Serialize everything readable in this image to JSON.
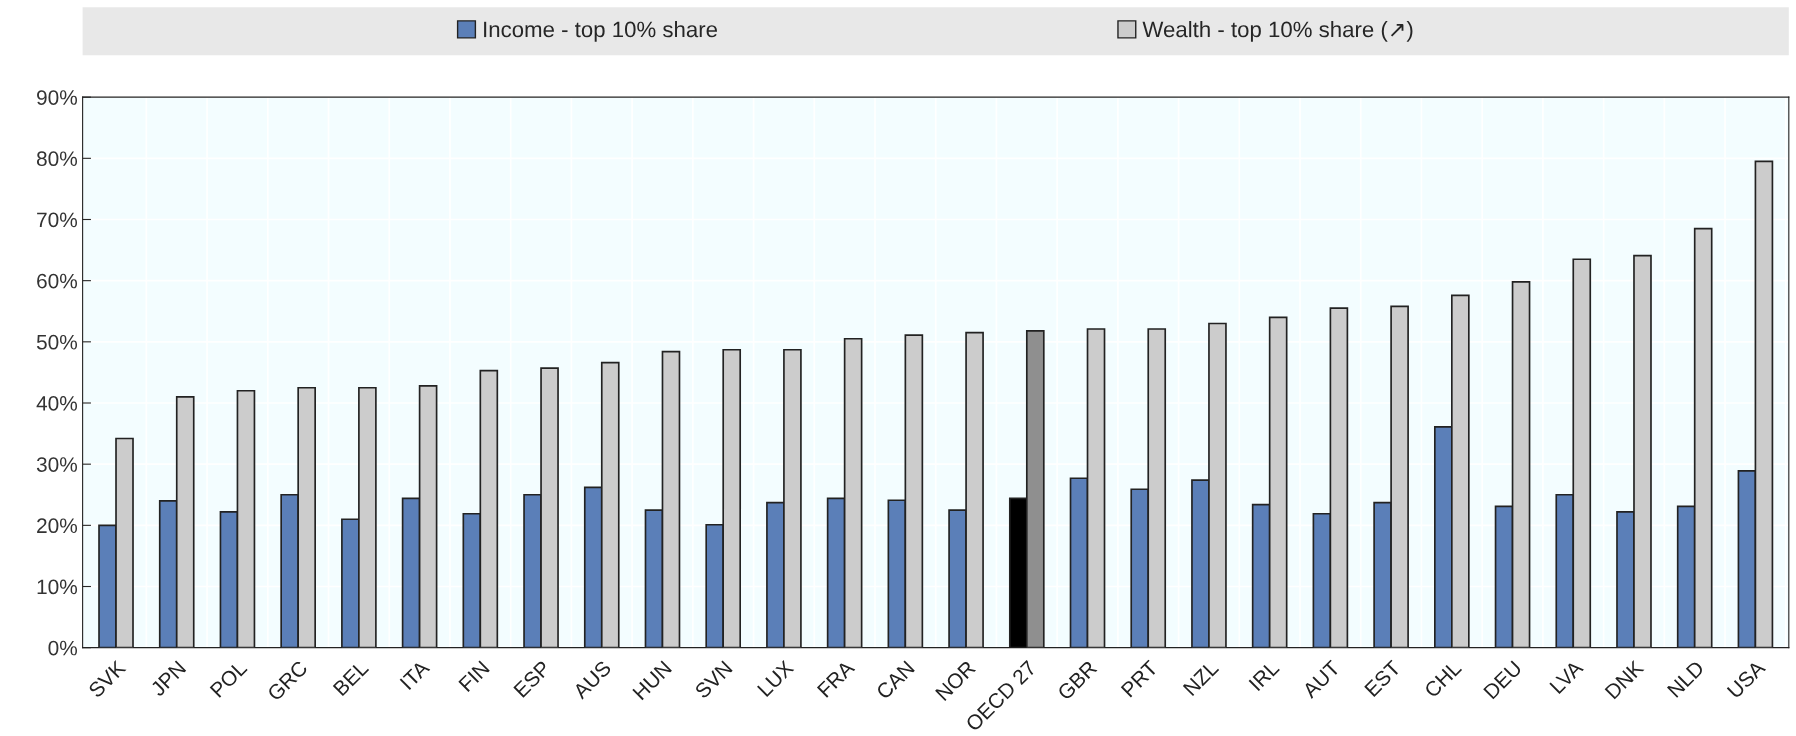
{
  "chart_data": {
    "type": "bar",
    "categories": [
      "SVK",
      "JPN",
      "POL",
      "GRC",
      "BEL",
      "ITA",
      "FIN",
      "ESP",
      "AUS",
      "HUN",
      "SVN",
      "LUX",
      "FRA",
      "CAN",
      "NOR",
      "OECD 27",
      "GBR",
      "PRT",
      "NZL",
      "IRL",
      "AUT",
      "EST",
      "CHL",
      "DEU",
      "LVA",
      "DNK",
      "NLD",
      "USA"
    ],
    "series": [
      {
        "name": "Income - top 10% share",
        "color": "#5b7fb8",
        "colors": [
          "#5b7fb8",
          "#5b7fb8",
          "#5b7fb8",
          "#5b7fb8",
          "#5b7fb8",
          "#5b7fb8",
          "#5b7fb8",
          "#5b7fb8",
          "#5b7fb8",
          "#5b7fb8",
          "#5b7fb8",
          "#5b7fb8",
          "#5b7fb8",
          "#5b7fb8",
          "#5b7fb8",
          "#000000",
          "#5b7fb8",
          "#5b7fb8",
          "#5b7fb8",
          "#5b7fb8",
          "#5b7fb8",
          "#5b7fb8",
          "#5b7fb8",
          "#5b7fb8",
          "#5b7fb8",
          "#5b7fb8",
          "#5b7fb8",
          "#5b7fb8"
        ],
        "values": [
          20,
          24,
          22.2,
          25,
          21,
          24.4,
          21.9,
          25,
          26.2,
          22.5,
          20.1,
          23.7,
          24.4,
          24.1,
          22.5,
          24.4,
          27.7,
          25.9,
          27.4,
          23.4,
          21.9,
          23.7,
          36.1,
          23.1,
          25,
          22.2,
          23.1,
          28.9
        ]
      },
      {
        "name": "Wealth - top 10% share (↗)",
        "color": "#cccccc",
        "colors": [
          "#cccccc",
          "#cccccc",
          "#cccccc",
          "#cccccc",
          "#cccccc",
          "#cccccc",
          "#cccccc",
          "#cccccc",
          "#cccccc",
          "#cccccc",
          "#cccccc",
          "#cccccc",
          "#cccccc",
          "#cccccc",
          "#cccccc",
          "#8f8f8f",
          "#cccccc",
          "#cccccc",
          "#cccccc",
          "#cccccc",
          "#cccccc",
          "#cccccc",
          "#cccccc",
          "#cccccc",
          "#cccccc",
          "#cccccc",
          "#cccccc",
          "#cccccc"
        ],
        "values": [
          34.2,
          41,
          42,
          42.5,
          42.5,
          42.8,
          45.3,
          45.7,
          46.6,
          48.4,
          48.7,
          48.7,
          50.5,
          51.1,
          51.5,
          51.8,
          52.1,
          52.1,
          53,
          54,
          55.5,
          55.8,
          57.6,
          59.8,
          63.5,
          64.1,
          68.5,
          79.5
        ]
      }
    ],
    "ylim": [
      0,
      90
    ],
    "yticks": [
      {
        "value": 0,
        "label": "0%"
      },
      {
        "value": 10,
        "label": "10%"
      },
      {
        "value": 20,
        "label": "20%"
      },
      {
        "value": 30,
        "label": "30%"
      },
      {
        "value": 40,
        "label": "40%"
      },
      {
        "value": 50,
        "label": "50%"
      },
      {
        "value": 60,
        "label": "60%"
      },
      {
        "value": 70,
        "label": "70%"
      },
      {
        "value": 80,
        "label": "80%"
      },
      {
        "value": 90,
        "label": "90%"
      }
    ],
    "grid": true,
    "legend": "top"
  }
}
